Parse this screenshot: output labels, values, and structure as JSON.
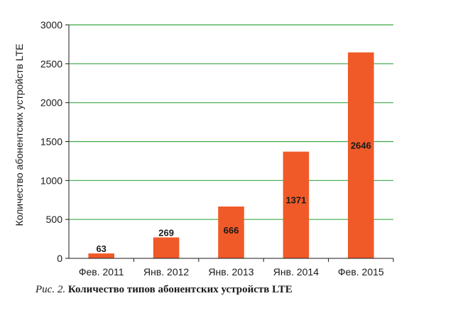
{
  "chart_data": {
    "type": "bar",
    "categories": [
      "Фев. 2011",
      "Янв. 2012",
      "Янв. 2013",
      "Янв. 2014",
      "Фев. 2015"
    ],
    "values": [
      63,
      269,
      666,
      1371,
      2646
    ],
    "data_labels": [
      "63",
      "269",
      "666",
      "1371",
      "2646"
    ],
    "ylabel": "Количество абонентских устройств LTE",
    "xlabel": "",
    "ylim": [
      0,
      3000
    ],
    "yticks": [
      0,
      500,
      1000,
      1500,
      2000,
      2500,
      3000
    ],
    "grid": true,
    "legend": "none",
    "colors": {
      "bar": "#f05a28",
      "grid": "#3aa845",
      "axis": "#1a1a1a"
    }
  },
  "caption": {
    "prefix": "Рис. 2.",
    "title": "Количество типов абонентских устройств LTE"
  }
}
